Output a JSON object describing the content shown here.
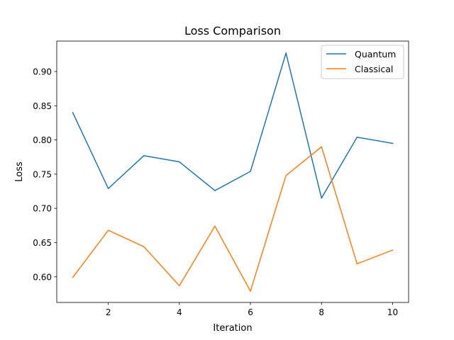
{
  "chart_data": {
    "type": "line",
    "title": "Loss Comparison",
    "xlabel": "Iteration",
    "ylabel": "Loss",
    "x": [
      1,
      2,
      3,
      4,
      5,
      6,
      7,
      8,
      9,
      10
    ],
    "xlim": [
      0.55,
      10.45
    ],
    "ylim": [
      0.5625,
      0.9445
    ],
    "xticks": [
      2,
      4,
      6,
      8,
      10
    ],
    "yticks": [
      0.6,
      0.65,
      0.7,
      0.75,
      0.8,
      0.85,
      0.9
    ],
    "xtick_labels": [
      "2",
      "4",
      "6",
      "8",
      "10"
    ],
    "ytick_labels": [
      "0.60",
      "0.65",
      "0.70",
      "0.75",
      "0.80",
      "0.85",
      "0.90"
    ],
    "grid": false,
    "legend_position": "upper right",
    "series": [
      {
        "name": "Quantum",
        "color": "#1f77b4",
        "values": [
          0.84,
          0.729,
          0.777,
          0.768,
          0.726,
          0.754,
          0.927,
          0.715,
          0.804,
          0.795
        ]
      },
      {
        "name": "Classical",
        "color": "#ff7f0e",
        "values": [
          0.599,
          0.668,
          0.644,
          0.587,
          0.674,
          0.579,
          0.748,
          0.79,
          0.619,
          0.639
        ]
      }
    ]
  }
}
